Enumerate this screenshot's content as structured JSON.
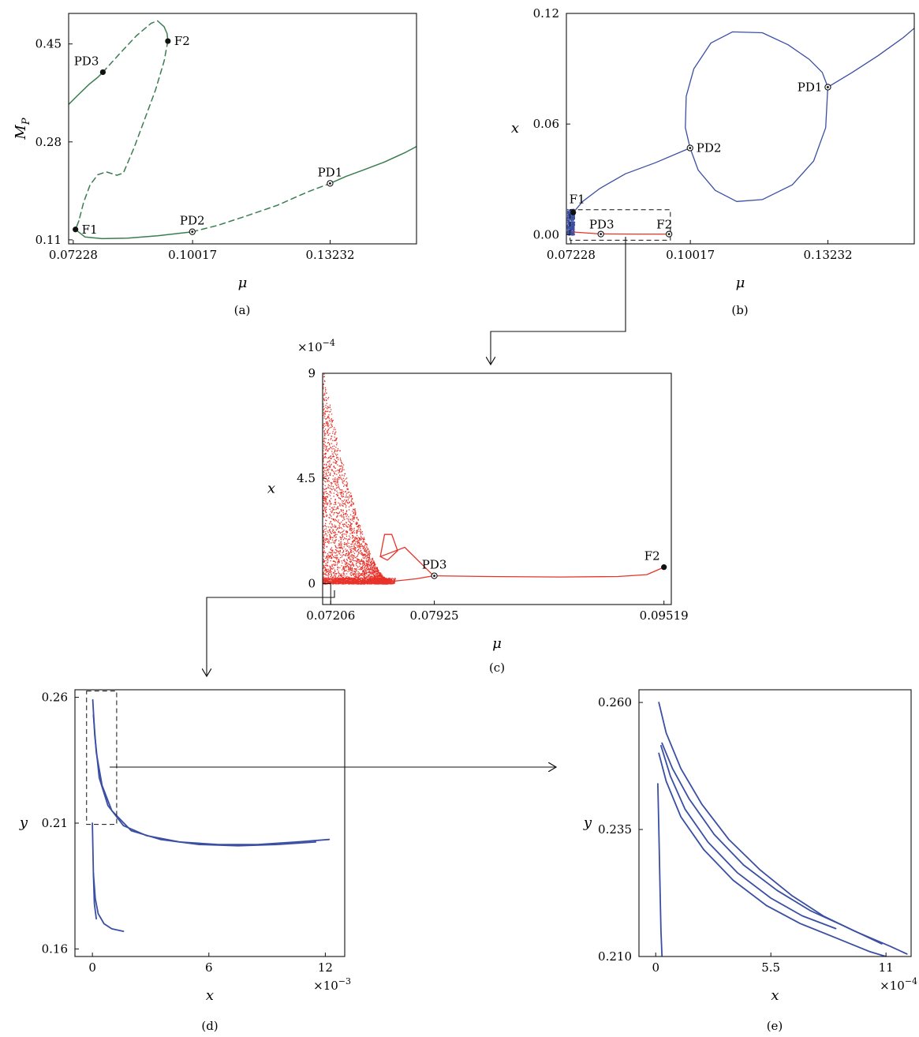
{
  "colors": {
    "green": "#3a7d50",
    "blue": "#3a4fa3",
    "red": "#e8332a",
    "black": "#111111"
  },
  "chart_data": [
    {
      "id": "a",
      "panel_label": "(a)",
      "type": "line",
      "xlabel": "μ",
      "ylabel": "M_P",
      "ylabel_main": "M",
      "ylabel_sub": "P",
      "xlim": [
        0.0712,
        0.1525
      ],
      "ylim": [
        0.103,
        0.503
      ],
      "xticks": [
        "0.07228",
        "0.10017",
        "0.13232"
      ],
      "xtick_values": [
        0.07228,
        0.10017,
        0.13232
      ],
      "yticks": [
        "0.11",
        "0.28",
        "0.45"
      ],
      "ytick_values": [
        0.11,
        0.28,
        0.45
      ],
      "series": [
        {
          "style": "solid",
          "points": [
            [
              0.0712,
              0.345
            ],
            [
              0.0735,
              0.362
            ],
            [
              0.076,
              0.38
            ],
            [
              0.078,
              0.392
            ],
            [
              0.0792,
              0.401
            ]
          ]
        },
        {
          "style": "dashed",
          "points": [
            [
              0.0792,
              0.401
            ],
            [
              0.083,
              0.432
            ],
            [
              0.087,
              0.464
            ],
            [
              0.0905,
              0.486
            ],
            [
              0.092,
              0.49
            ]
          ]
        },
        {
          "style": "solid",
          "points": [
            [
              0.092,
              0.49
            ],
            [
              0.0935,
              0.48
            ],
            [
              0.0942,
              0.468
            ],
            [
              0.0944,
              0.455
            ]
          ]
        },
        {
          "style": "dashed",
          "points": [
            [
              0.0944,
              0.455
            ],
            [
              0.0935,
              0.42
            ],
            [
              0.0915,
              0.37
            ],
            [
              0.089,
              0.32
            ],
            [
              0.0865,
              0.27
            ],
            [
              0.084,
              0.226
            ],
            [
              0.0825,
              0.222
            ],
            [
              0.08,
              0.228
            ],
            [
              0.078,
              0.223
            ],
            [
              0.0762,
              0.205
            ],
            [
              0.0747,
              0.175
            ],
            [
              0.0736,
              0.143
            ]
          ]
        },
        {
          "style": "solid",
          "points": [
            [
              0.0736,
              0.143
            ],
            [
              0.0728,
              0.128
            ]
          ]
        },
        {
          "style": "solid",
          "points": [
            [
              0.0728,
              0.128
            ],
            [
              0.075,
              0.115
            ],
            [
              0.079,
              0.112
            ],
            [
              0.085,
              0.113
            ],
            [
              0.092,
              0.117
            ],
            [
              0.1001,
              0.124
            ]
          ]
        },
        {
          "style": "dashed",
          "points": [
            [
              0.1001,
              0.124
            ],
            [
              0.106,
              0.135
            ],
            [
              0.113,
              0.152
            ],
            [
              0.12,
              0.17
            ],
            [
              0.127,
              0.193
            ],
            [
              0.1323,
              0.208
            ]
          ]
        },
        {
          "style": "solid",
          "points": [
            [
              0.1323,
              0.208
            ],
            [
              0.136,
              0.22
            ],
            [
              0.14,
              0.231
            ],
            [
              0.145,
              0.245
            ],
            [
              0.15,
              0.262
            ],
            [
              0.1525,
              0.272
            ]
          ]
        }
      ],
      "points": [
        {
          "label": "PD3",
          "x": 0.0792,
          "y": 0.401,
          "marker": "filled",
          "anchor": "above-left"
        },
        {
          "label": "F2",
          "x": 0.0944,
          "y": 0.455,
          "marker": "filled",
          "anchor": "right"
        },
        {
          "label": "F1",
          "x": 0.0728,
          "y": 0.128,
          "marker": "filled",
          "anchor": "right"
        },
        {
          "label": "PD2",
          "x": 0.1001,
          "y": 0.124,
          "marker": "ring",
          "anchor": "above"
        },
        {
          "label": "PD1",
          "x": 0.1323,
          "y": 0.208,
          "marker": "ring",
          "anchor": "above"
        }
      ]
    },
    {
      "id": "b",
      "panel_label": "(b)",
      "type": "scatter",
      "xlabel": "μ",
      "ylabel": "x",
      "xlim": [
        0.0712,
        0.1525
      ],
      "ylim": [
        -0.005,
        0.12
      ],
      "xticks": [
        "0.07228",
        "0.10017",
        "0.13232"
      ],
      "xtick_values": [
        0.07228,
        0.10017,
        0.13232
      ],
      "yticks": [
        "0.00",
        "0.06",
        "0.12"
      ],
      "ytick_values": [
        0.0,
        0.06,
        0.12
      ],
      "series": [
        {
          "style": "line",
          "color": "blue",
          "points": [
            [
              0.0728,
              0.012
            ],
            [
              0.075,
              0.018
            ],
            [
              0.079,
              0.025
            ],
            [
              0.085,
              0.033
            ],
            [
              0.092,
              0.039
            ],
            [
              0.1001,
              0.047
            ]
          ]
        },
        {
          "style": "line",
          "color": "blue",
          "points": [
            [
              0.1001,
              0.047
            ],
            [
              0.099,
              0.058
            ],
            [
              0.0992,
              0.075
            ],
            [
              0.101,
              0.09
            ],
            [
              0.105,
              0.104
            ],
            [
              0.11,
              0.11
            ],
            [
              0.117,
              0.1095
            ],
            [
              0.123,
              0.103
            ],
            [
              0.128,
              0.095
            ],
            [
              0.131,
              0.088
            ],
            [
              0.1323,
              0.08
            ]
          ]
        },
        {
          "style": "line",
          "color": "blue",
          "points": [
            [
              0.1001,
              0.047
            ],
            [
              0.102,
              0.035
            ],
            [
              0.106,
              0.024
            ],
            [
              0.111,
              0.018
            ],
            [
              0.117,
              0.019
            ],
            [
              0.124,
              0.027
            ],
            [
              0.129,
              0.04
            ],
            [
              0.1318,
              0.058
            ],
            [
              0.1323,
              0.08
            ]
          ]
        },
        {
          "style": "line",
          "color": "blue",
          "points": [
            [
              0.1323,
              0.08
            ],
            [
              0.138,
              0.088
            ],
            [
              0.144,
              0.097
            ],
            [
              0.15,
              0.107
            ],
            [
              0.1525,
              0.112
            ]
          ]
        },
        {
          "style": "line",
          "color": "red",
          "points": [
            [
              0.0728,
              0.0014
            ],
            [
              0.079,
              0.0004
            ],
            [
              0.088,
              0.0003
            ],
            [
              0.0945,
              0.0003
            ],
            [
              0.0952,
              0.0007
            ]
          ]
        }
      ],
      "points": [
        {
          "label": "PD1",
          "x": 0.1323,
          "y": 0.08,
          "marker": "ring",
          "anchor": "left"
        },
        {
          "label": "PD2",
          "x": 0.1001,
          "y": 0.047,
          "marker": "ring",
          "anchor": "right"
        },
        {
          "label": "F1",
          "x": 0.0728,
          "y": 0.012,
          "marker": "filled",
          "anchor": "above-right"
        },
        {
          "label": "PD3",
          "x": 0.07925,
          "y": 0.0003,
          "marker": "ring",
          "anchor": "above"
        },
        {
          "label": "F2",
          "x": 0.09519,
          "y": 0.0003,
          "marker": "ring",
          "anchor": "above-left"
        }
      ],
      "zoom_box": {
        "x0": 0.07206,
        "x1": 0.0955,
        "y0": -0.003,
        "y1": 0.0135
      }
    },
    {
      "id": "c",
      "panel_label": "(c)",
      "type": "scatter",
      "xlabel": "μ",
      "ylabel": "x",
      "multiplier": "×10",
      "multiplier_exp": "−4",
      "xlim": [
        0.0715,
        0.0957
      ],
      "ylim": [
        -0.9,
        9.0
      ],
      "xticks": [
        "0.07206",
        "0.07925",
        "0.09519"
      ],
      "xtick_values": [
        0.07206,
        0.07925,
        0.09519
      ],
      "yticks": [
        "0",
        "4.5",
        "9"
      ],
      "ytick_values": [
        0.0,
        4.5,
        9.0
      ],
      "series": [
        {
          "style": "line",
          "points": [
            [
              0.0755,
              1.15
            ],
            [
              0.0772,
              1.55
            ],
            [
              0.0792,
              0.33
            ]
          ]
        },
        {
          "style": "line",
          "points": [
            [
              0.074,
              0.08
            ],
            [
              0.076,
              0.07
            ],
            [
              0.078,
              0.2
            ],
            [
              0.0792,
              0.33
            ]
          ]
        },
        {
          "style": "line",
          "points": [
            [
              0.0792,
              0.33
            ],
            [
              0.083,
              0.3
            ],
            [
              0.088,
              0.28
            ],
            [
              0.092,
              0.3
            ],
            [
              0.094,
              0.38
            ],
            [
              0.0952,
              0.7
            ]
          ]
        },
        {
          "style": "loop",
          "points": [
            [
              0.0755,
              1.15
            ],
            [
              0.0758,
              2.1
            ],
            [
              0.0763,
              2.1
            ],
            [
              0.0767,
              1.4
            ],
            [
              0.076,
              1.0
            ],
            [
              0.0755,
              1.15
            ]
          ]
        }
      ],
      "points": [
        {
          "label": "PD3",
          "x": 0.07925,
          "y": 0.33,
          "marker": "ring",
          "anchor": "above"
        },
        {
          "label": "F2",
          "x": 0.09519,
          "y": 0.7,
          "marker": "filled",
          "anchor": "above-left"
        }
      ],
      "chaos_region": {
        "x0": 0.0715,
        "x1": 0.076,
        "ymax": 9.0
      },
      "zoom_box": {
        "x0": 0.0715,
        "x1": 0.07206,
        "y0": -0.9,
        "y1": 0.0
      }
    },
    {
      "id": "d",
      "panel_label": "(d)",
      "type": "scatter",
      "xlabel": "x",
      "ylabel": "y",
      "multiplier": "×10",
      "multiplier_exp": "−3",
      "xlim": [
        -0.9,
        13.0
      ],
      "ylim": [
        0.157,
        0.263
      ],
      "xticks": [
        "0",
        "6",
        "12"
      ],
      "xtick_values": [
        0.0,
        6.0,
        12.0
      ],
      "yticks": [
        "0.16",
        "0.21",
        "0.26"
      ],
      "ytick_values": [
        0.16,
        0.21,
        0.26
      ],
      "series": [
        {
          "style": "line",
          "points": [
            [
              0.02,
              0.259
            ],
            [
              0.12,
              0.245
            ],
            [
              0.35,
              0.228
            ],
            [
              0.8,
              0.217
            ],
            [
              1.6,
              0.209
            ],
            [
              2.8,
              0.205
            ],
            [
              4.5,
              0.2025
            ],
            [
              6.5,
              0.2015
            ],
            [
              8.5,
              0.2015
            ],
            [
              10.5,
              0.2025
            ],
            [
              12.2,
              0.2035
            ]
          ]
        },
        {
          "style": "line",
          "points": [
            [
              0.05,
              0.253
            ],
            [
              0.2,
              0.238
            ],
            [
              0.5,
              0.225
            ],
            [
              1.0,
              0.215
            ],
            [
              2.0,
              0.207
            ],
            [
              3.5,
              0.2035
            ],
            [
              5.5,
              0.2015
            ],
            [
              7.5,
              0.201
            ],
            [
              9.5,
              0.2015
            ],
            [
              11.5,
              0.2025
            ]
          ]
        },
        {
          "style": "line",
          "points": [
            [
              0.0,
              0.21
            ],
            [
              0.05,
              0.19
            ],
            [
              0.1,
              0.178
            ],
            [
              0.2,
              0.172
            ]
          ]
        },
        {
          "style": "line",
          "points": [
            [
              0.05,
              0.19
            ],
            [
              0.15,
              0.18
            ],
            [
              0.3,
              0.174
            ],
            [
              0.6,
              0.17
            ],
            [
              1.0,
              0.168
            ],
            [
              1.6,
              0.167
            ]
          ]
        }
      ],
      "zoom_box": {
        "x0": -0.3,
        "x1": 1.25,
        "y0": 0.2095,
        "y1": 0.2625
      }
    },
    {
      "id": "e",
      "panel_label": "(e)",
      "type": "scatter",
      "xlabel": "x",
      "ylabel": "y",
      "multiplier": "×10",
      "multiplier_exp": "−4",
      "xlim": [
        -0.8,
        12.2
      ],
      "ylim": [
        0.21,
        0.2625
      ],
      "xticks": [
        "0",
        "5.5",
        "11"
      ],
      "xtick_values": [
        0.0,
        5.5,
        11.0
      ],
      "yticks": [
        "0.210",
        "0.235",
        "0.260"
      ],
      "ytick_values": [
        0.21,
        0.235,
        0.26
      ],
      "series": [
        {
          "style": "line",
          "points": [
            [
              0.15,
              0.26
            ],
            [
              0.5,
              0.254
            ],
            [
              1.2,
              0.247
            ],
            [
              2.2,
              0.24
            ],
            [
              3.5,
              0.233
            ],
            [
              5.0,
              0.227
            ],
            [
              6.5,
              0.222
            ],
            [
              8.0,
              0.218
            ],
            [
              9.5,
              0.215
            ],
            [
              11.2,
              0.212
            ],
            [
              12.0,
              0.2105
            ]
          ]
        },
        {
          "style": "line",
          "points": [
            [
              0.3,
              0.252
            ],
            [
              0.8,
              0.247
            ],
            [
              1.6,
              0.241
            ],
            [
              2.8,
              0.234
            ],
            [
              4.2,
              0.228
            ],
            [
              5.8,
              0.223
            ],
            [
              7.4,
              0.219
            ],
            [
              9.0,
              0.216
            ],
            [
              10.8,
              0.2125
            ]
          ]
        },
        {
          "style": "line",
          "points": [
            [
              0.25,
              0.2515
            ],
            [
              0.7,
              0.2455
            ],
            [
              1.4,
              0.239
            ],
            [
              2.5,
              0.2325
            ],
            [
              3.9,
              0.2265
            ],
            [
              5.5,
              0.2215
            ],
            [
              7.0,
              0.218
            ],
            [
              8.6,
              0.2155
            ]
          ]
        },
        {
          "style": "line",
          "points": [
            [
              0.15,
              0.25
            ],
            [
              0.5,
              0.2445
            ],
            [
              1.2,
              0.2375
            ],
            [
              2.3,
              0.231
            ],
            [
              3.7,
              0.225
            ],
            [
              5.3,
              0.22
            ],
            [
              6.9,
              0.2165
            ],
            [
              8.4,
              0.214
            ],
            [
              10.2,
              0.211
            ],
            [
              11.4,
              0.2095
            ]
          ]
        },
        {
          "style": "line",
          "points": [
            [
              0.1,
              0.244
            ],
            [
              0.15,
              0.235
            ],
            [
              0.2,
              0.225
            ],
            [
              0.25,
              0.215
            ],
            [
              0.3,
              0.21
            ]
          ]
        }
      ]
    }
  ]
}
